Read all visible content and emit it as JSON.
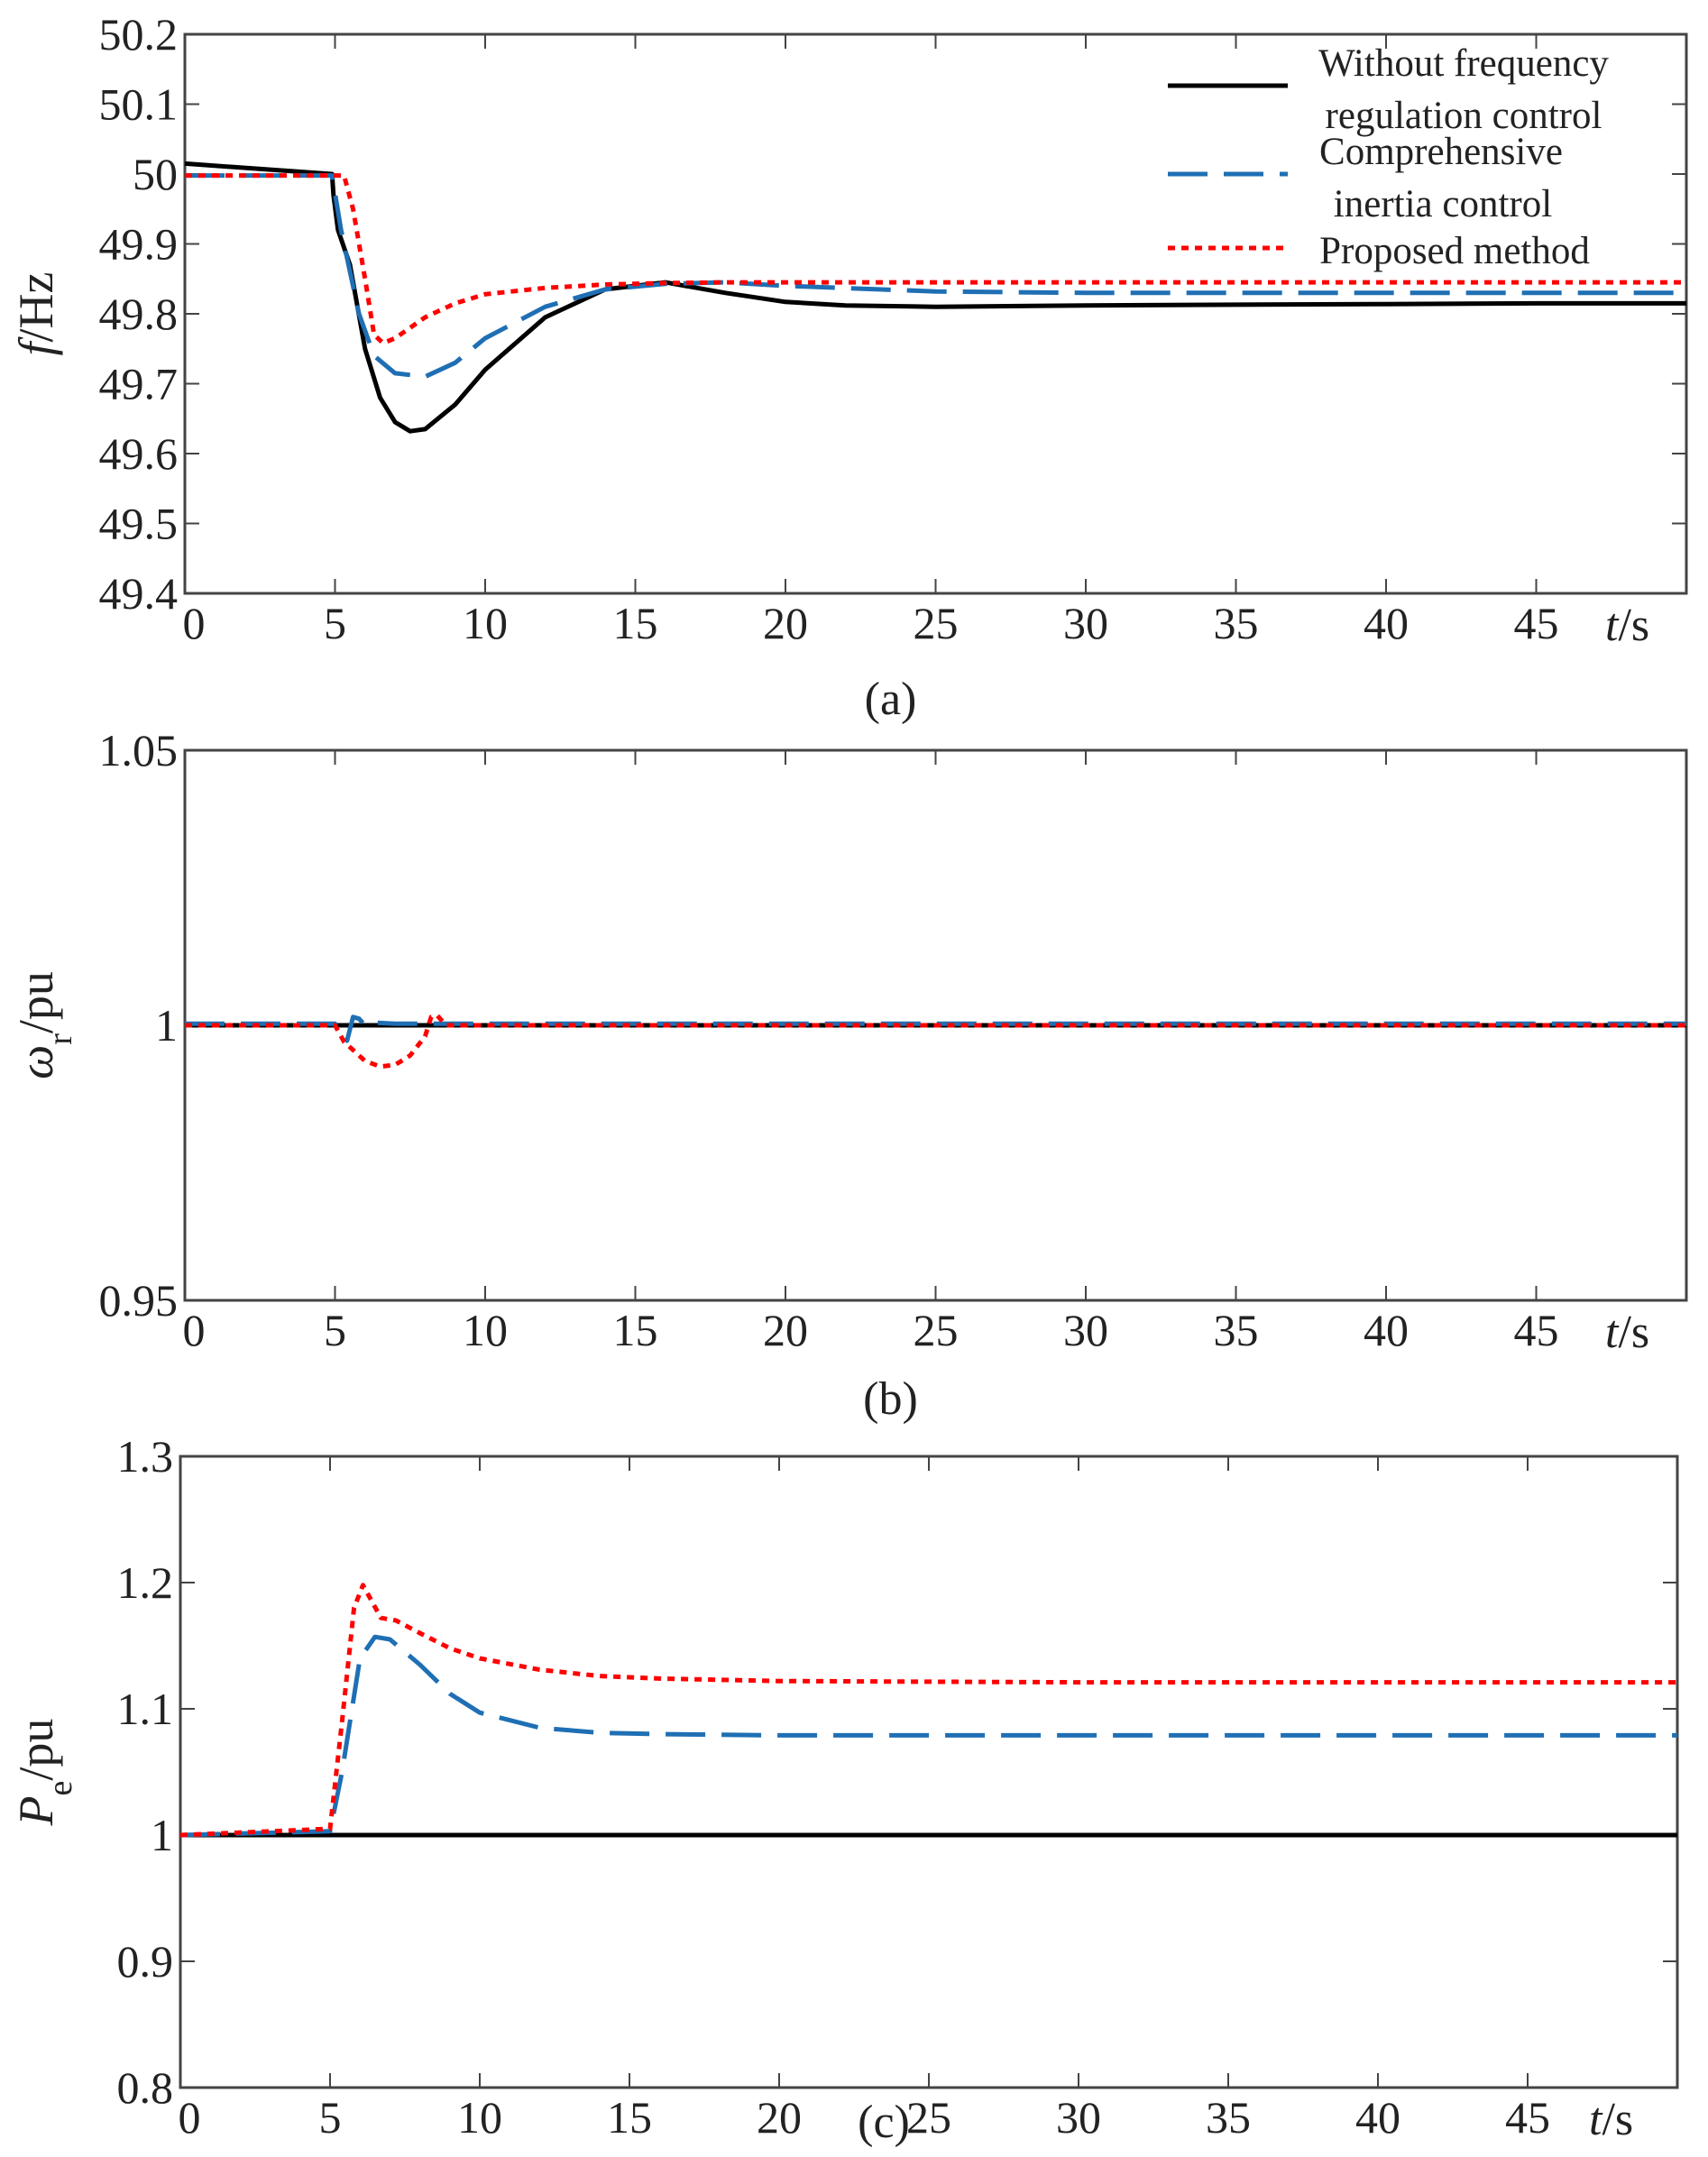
{
  "chart_data": [
    {
      "type": "line",
      "panel": "a",
      "caption": "(a)",
      "ylabel": {
        "symbol": "f",
        "unit": "/Hz"
      },
      "xlabel": {
        "symbol": "t",
        "unit": "/s"
      },
      "xlim": [
        0,
        50
      ],
      "ylim": [
        49.4,
        50.2
      ],
      "xticks": [
        0,
        5,
        10,
        15,
        20,
        25,
        30,
        35,
        40,
        45
      ],
      "xtick_labels": [
        "0",
        "5",
        "10",
        "15",
        "20",
        "25",
        "30",
        "35",
        "40",
        "45"
      ],
      "yticks": [
        49.4,
        49.5,
        49.6,
        49.7,
        49.8,
        49.9,
        50,
        50.1,
        50.2
      ],
      "ytick_labels": [
        "49.4",
        "49.5",
        "49.6",
        "49.7",
        "49.8",
        "49.9",
        "50",
        "50.1",
        "50.2"
      ],
      "legend": {
        "position": "top-right",
        "entries": [
          {
            "label_lines": [
              "Without frequency",
              "regulation control"
            ],
            "color": "#000000",
            "style": "solid"
          },
          {
            "label_lines": [
              "Comprehensive",
              "inertia control"
            ],
            "color": "#1f6fb4",
            "style": "dashed"
          },
          {
            "label_lines": [
              "Proposed method"
            ],
            "color": "#ff0000",
            "style": "dotted"
          }
        ]
      },
      "series": [
        {
          "name": "Without frequency regulation control",
          "color": "#000000",
          "style": "solid",
          "x": [
            0,
            4.9,
            4.95,
            5.1,
            5.5,
            6,
            6.5,
            7,
            7.5,
            8,
            9,
            10,
            12,
            14,
            16,
            18,
            20,
            22,
            25,
            30,
            35,
            40,
            45,
            50
          ],
          "y": [
            50.015,
            50,
            49.97,
            49.92,
            49.87,
            49.75,
            49.68,
            49.645,
            49.632,
            49.635,
            49.67,
            49.72,
            49.795,
            49.835,
            49.845,
            49.83,
            49.817,
            49.812,
            49.81,
            49.812,
            49.813,
            49.814,
            49.815,
            49.815
          ]
        },
        {
          "name": "Comprehensive inertia control",
          "color": "#1f6fb4",
          "style": "dashed",
          "x": [
            0,
            4.9,
            5.2,
            5.8,
            6.3,
            7,
            8,
            9,
            10,
            12,
            14,
            16,
            18,
            20,
            25,
            30,
            35,
            40,
            45,
            50
          ],
          "y": [
            49.998,
            49.998,
            49.92,
            49.8,
            49.74,
            49.715,
            49.71,
            49.73,
            49.765,
            49.81,
            49.835,
            49.843,
            49.845,
            49.84,
            49.832,
            49.83,
            49.83,
            49.83,
            49.83,
            49.83
          ]
        },
        {
          "name": "Proposed method",
          "color": "#ff0000",
          "style": "dotted",
          "x": [
            0,
            5.3,
            5.6,
            6,
            6.3,
            6.6,
            7,
            8,
            9,
            10,
            12,
            14,
            16,
            18,
            20,
            25,
            30,
            35,
            40,
            45,
            50
          ],
          "y": [
            49.998,
            49.998,
            49.95,
            49.85,
            49.77,
            49.758,
            49.765,
            49.795,
            49.815,
            49.828,
            49.837,
            49.842,
            49.844,
            49.845,
            49.845,
            49.845,
            49.845,
            49.845,
            49.845,
            49.845,
            49.845
          ]
        }
      ]
    },
    {
      "type": "line",
      "panel": "b",
      "caption": "(b)",
      "ylabel": {
        "symbol": "ω",
        "sub": "r",
        "unit": "/pu"
      },
      "xlabel": {
        "symbol": "t",
        "unit": "/s"
      },
      "xlim": [
        0,
        50
      ],
      "ylim": [
        0.95,
        1.05
      ],
      "xticks": [
        0,
        5,
        10,
        15,
        20,
        25,
        30,
        35,
        40,
        45
      ],
      "xtick_labels": [
        "0",
        "5",
        "10",
        "15",
        "20",
        "25",
        "30",
        "35",
        "40",
        "45"
      ],
      "yticks": [
        0.95,
        1,
        1.05
      ],
      "ytick_labels": [
        "0.95",
        "1",
        "1.05"
      ],
      "series": [
        {
          "name": "Without frequency regulation control",
          "color": "#000000",
          "style": "solid",
          "x": [
            0,
            50
          ],
          "y": [
            1.0,
            1.0
          ]
        },
        {
          "name": "Comprehensive inertia control",
          "color": "#1f6fb4",
          "style": "dashed",
          "x": [
            0,
            5,
            5.2,
            5.4,
            5.6,
            5.8,
            6,
            6.3,
            7,
            50
          ],
          "y": [
            1.0003,
            1.0003,
            0.9985,
            0.9972,
            1.0015,
            1.0012,
            1.0,
            1.0005,
            1.0003,
            1.0003
          ]
        },
        {
          "name": "Proposed method",
          "color": "#ff0000",
          "style": "dotted",
          "x": [
            0,
            5,
            5.3,
            5.6,
            6,
            6.5,
            7,
            7.5,
            8,
            8.2,
            8.4,
            8.7,
            9,
            50
          ],
          "y": [
            1.0,
            1.0,
            0.997,
            0.9955,
            0.9935,
            0.9925,
            0.9928,
            0.9945,
            0.998,
            1.0015,
            1.0018,
            1.0,
            1.0,
            1.0
          ]
        }
      ]
    },
    {
      "type": "line",
      "panel": "c",
      "caption": "(c)",
      "ylabel": {
        "symbol": "P",
        "sub": "e",
        "unit": "/pu"
      },
      "xlabel": {
        "symbol": "t",
        "unit": "/s"
      },
      "xlim": [
        0,
        50
      ],
      "ylim": [
        0.8,
        1.3
      ],
      "xticks": [
        0,
        5,
        10,
        15,
        20,
        25,
        30,
        35,
        40,
        45
      ],
      "xtick_labels": [
        "0",
        "5",
        "10",
        "15",
        "20",
        "25",
        "30",
        "35",
        "40",
        "45"
      ],
      "yticks": [
        0.8,
        0.9,
        1,
        1.1,
        1.2,
        1.3
      ],
      "ytick_labels": [
        "0.8",
        "0.9",
        "1",
        "1.1",
        "1.2",
        "1.3"
      ],
      "series": [
        {
          "name": "Without frequency regulation control",
          "color": "#000000",
          "style": "solid",
          "x": [
            0,
            50
          ],
          "y": [
            1.0,
            1.0
          ]
        },
        {
          "name": "Comprehensive inertia control",
          "color": "#1f6fb4",
          "style": "dashed",
          "x": [
            0,
            5,
            5.4,
            6,
            6.5,
            7,
            8,
            9,
            10,
            12,
            14,
            16,
            20,
            30,
            40,
            50
          ],
          "y": [
            1.0,
            1.003,
            1.05,
            1.14,
            1.157,
            1.155,
            1.135,
            1.112,
            1.097,
            1.085,
            1.081,
            1.08,
            1.079,
            1.079,
            1.079,
            1.079
          ]
        },
        {
          "name": "Proposed method",
          "color": "#ff0000",
          "style": "dotted",
          "x": [
            0,
            5,
            5.4,
            5.8,
            6.1,
            6.4,
            6.7,
            7.2,
            8,
            9,
            10,
            12,
            14,
            16,
            20,
            30,
            40,
            50
          ],
          "y": [
            1.0,
            1.005,
            1.09,
            1.18,
            1.198,
            1.185,
            1.172,
            1.17,
            1.16,
            1.148,
            1.14,
            1.131,
            1.126,
            1.124,
            1.122,
            1.121,
            1.121,
            1.121
          ]
        }
      ]
    }
  ]
}
